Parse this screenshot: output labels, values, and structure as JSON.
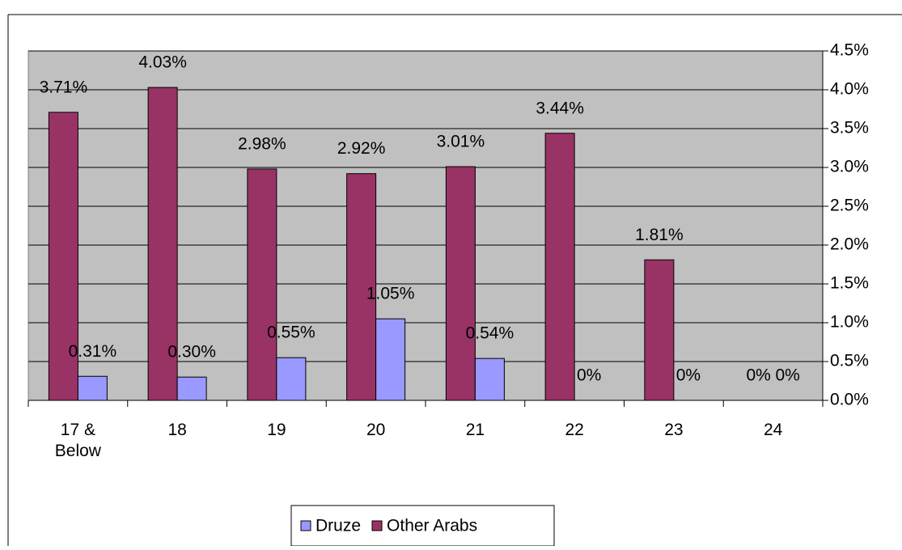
{
  "chart_data": {
    "type": "bar",
    "categories": [
      "17 & Below",
      "18",
      "19",
      "20",
      "21",
      "22",
      "23",
      "24"
    ],
    "series": [
      {
        "name": "Druze",
        "color": "#9999ff",
        "values": [
          0.31,
          0.3,
          0.55,
          1.05,
          0.54,
          0,
          0,
          0
        ],
        "value_labels": [
          "0.31%",
          "0.30%",
          "0.55%",
          "1.05%",
          "0.54%",
          "0%",
          "0%",
          "0%"
        ]
      },
      {
        "name": "Other Arabs",
        "color": "#993366",
        "values": [
          3.71,
          4.03,
          2.98,
          2.92,
          3.01,
          3.44,
          1.81,
          0
        ],
        "value_labels": [
          "3.71%",
          "4.03%",
          "2.98%",
          "2.92%",
          "3.01%",
          "3.44%",
          "1.81%",
          "0%"
        ]
      }
    ],
    "ylim": [
      0,
      4.5
    ],
    "yticks": [
      {
        "value": 0,
        "label": "0.0%"
      },
      {
        "value": 0.5,
        "label": "0.5%"
      },
      {
        "value": 1,
        "label": "1.0%"
      },
      {
        "value": 1.5,
        "label": "1.5%"
      },
      {
        "value": 2,
        "label": "2.0%"
      },
      {
        "value": 2.5,
        "label": "2.5%"
      },
      {
        "value": 3,
        "label": "3.0%"
      },
      {
        "value": 3.5,
        "label": "3.5%"
      },
      {
        "value": 4,
        "label": "4.0%"
      },
      {
        "value": 4.5,
        "label": "4.5%"
      }
    ],
    "grid": true,
    "legend": "bottom"
  }
}
